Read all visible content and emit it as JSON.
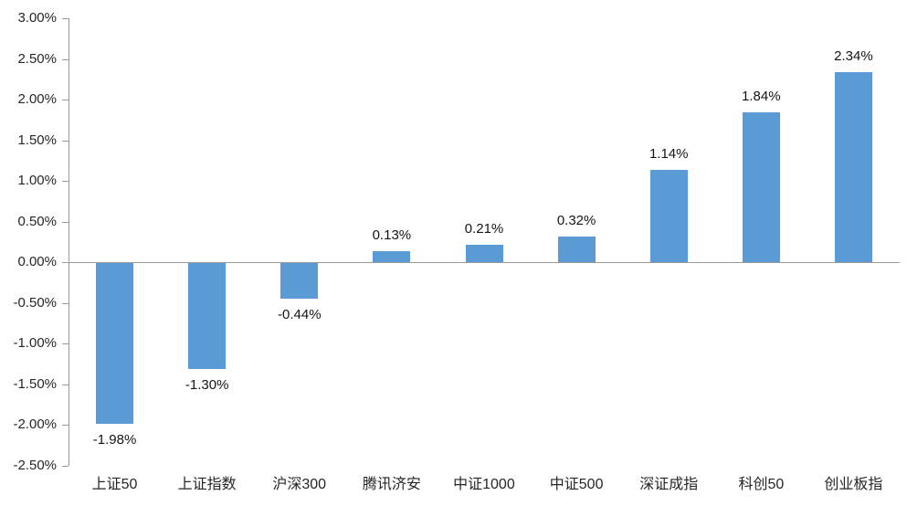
{
  "chart_data": {
    "type": "bar",
    "title": "",
    "xlabel": "",
    "ylabel": "",
    "categories": [
      "上证50",
      "上证指数",
      "沪深300",
      "腾讯济安",
      "中证1000",
      "中证500",
      "深证成指",
      "科创50",
      "创业板指"
    ],
    "values": [
      -1.98,
      -1.3,
      -0.44,
      0.13,
      0.21,
      0.32,
      1.14,
      1.84,
      2.34
    ],
    "data_labels": [
      "-1.98%",
      "-1.30%",
      "-0.44%",
      "0.13%",
      "0.21%",
      "0.32%",
      "1.14%",
      "1.84%",
      "2.34%"
    ],
    "ylim": [
      -2.5,
      3.0
    ],
    "ytick_step": 0.5,
    "yticks": [
      3.0,
      2.5,
      2.0,
      1.5,
      1.0,
      0.5,
      0.0,
      -0.5,
      -1.0,
      -1.5,
      -2.0,
      -2.5
    ],
    "ytick_labels": [
      "3.00%",
      "2.50%",
      "2.00%",
      "1.50%",
      "1.00%",
      "0.50%",
      "0.00%",
      "-0.50%",
      "-1.00%",
      "-1.50%",
      "-2.00%",
      "-2.50%"
    ],
    "grid": false,
    "legend": null,
    "colors": {
      "bar": "#5B9BD5",
      "axis": "#9a9a9a",
      "tick_text": "#262626",
      "label_text": "#141414"
    }
  }
}
